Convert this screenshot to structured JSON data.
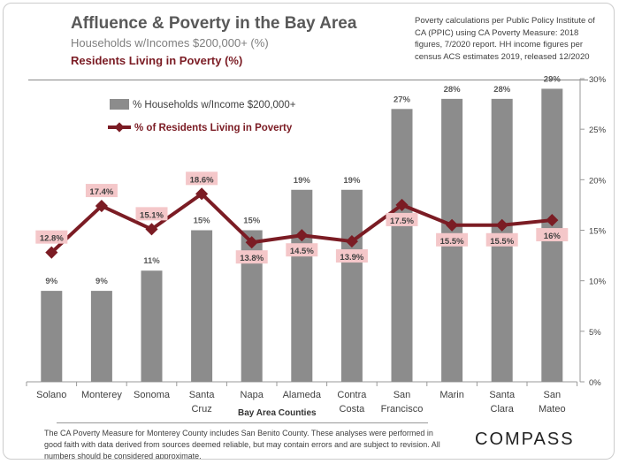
{
  "header": {
    "title": "Affluence & Poverty in the Bay Area",
    "subtitle_income": "Households w/Incomes $200,000+ (%)",
    "subtitle_poverty": "Residents Living in Poverty (%)",
    "source_note": "Poverty calculations per Public Policy Institute of CA (PPIC) using CA Poverty Measure: 2018 figures, 7/2020 report. HH income figures per census ACS estimates 2019, released 12/2020"
  },
  "footer": {
    "disclaimer": "The CA Poverty Measure for Monterey County includes San Benito County. These analyses were performed in good faith with data derived from sources deemed reliable, but may contain errors and are subject to revision.  All numbers should be considered approximate.",
    "logo": "COMPASS"
  },
  "chart_data": {
    "type": "bar",
    "xlabel": "Bay Area Counties",
    "ylabel": "",
    "ylim": [
      0,
      30
    ],
    "yticks": [
      "0%",
      "5%",
      "10%",
      "15%",
      "20%",
      "25%",
      "30%"
    ],
    "categories": [
      "Solano",
      "Monterey",
      "Sonoma",
      "Santa Cruz",
      "Napa",
      "Alameda",
      "Contra Costa",
      "San Francisco",
      "Marin",
      "Santa Clara",
      "San Mateo"
    ],
    "category_lines": [
      [
        "Solano"
      ],
      [
        "Monterey"
      ],
      [
        "Sonoma"
      ],
      [
        "Santa",
        "Cruz"
      ],
      [
        "Napa"
      ],
      [
        "Alameda"
      ],
      [
        "Contra",
        "Costa"
      ],
      [
        "San",
        "Francisco"
      ],
      [
        "Marin"
      ],
      [
        "Santa",
        "Clara"
      ],
      [
        "San",
        "Mateo"
      ]
    ],
    "series": [
      {
        "name": "% Households w/Income $200,000+",
        "type": "bar",
        "color": "#8c8c8c",
        "values": [
          9,
          9,
          11,
          15,
          15,
          19,
          19,
          27,
          28,
          28,
          29
        ],
        "labels": [
          "9%",
          "9%",
          "11%",
          "15%",
          "15%",
          "19%",
          "19%",
          "27%",
          "28%",
          "28%",
          "29%"
        ]
      },
      {
        "name": "% of Residents Living in Poverty",
        "type": "line",
        "color": "#7b1c24",
        "values": [
          12.8,
          17.4,
          15.1,
          18.6,
          13.8,
          14.5,
          13.9,
          17.5,
          15.5,
          15.5,
          16
        ],
        "labels": [
          "12.8%",
          "17.4%",
          "15.1%",
          "18.6%",
          "13.8%",
          "14.5%",
          "13.9%",
          "17.5%",
          "15.5%",
          "15.5%",
          "16%"
        ]
      }
    ],
    "legend_position": "top-left",
    "grid": false
  }
}
